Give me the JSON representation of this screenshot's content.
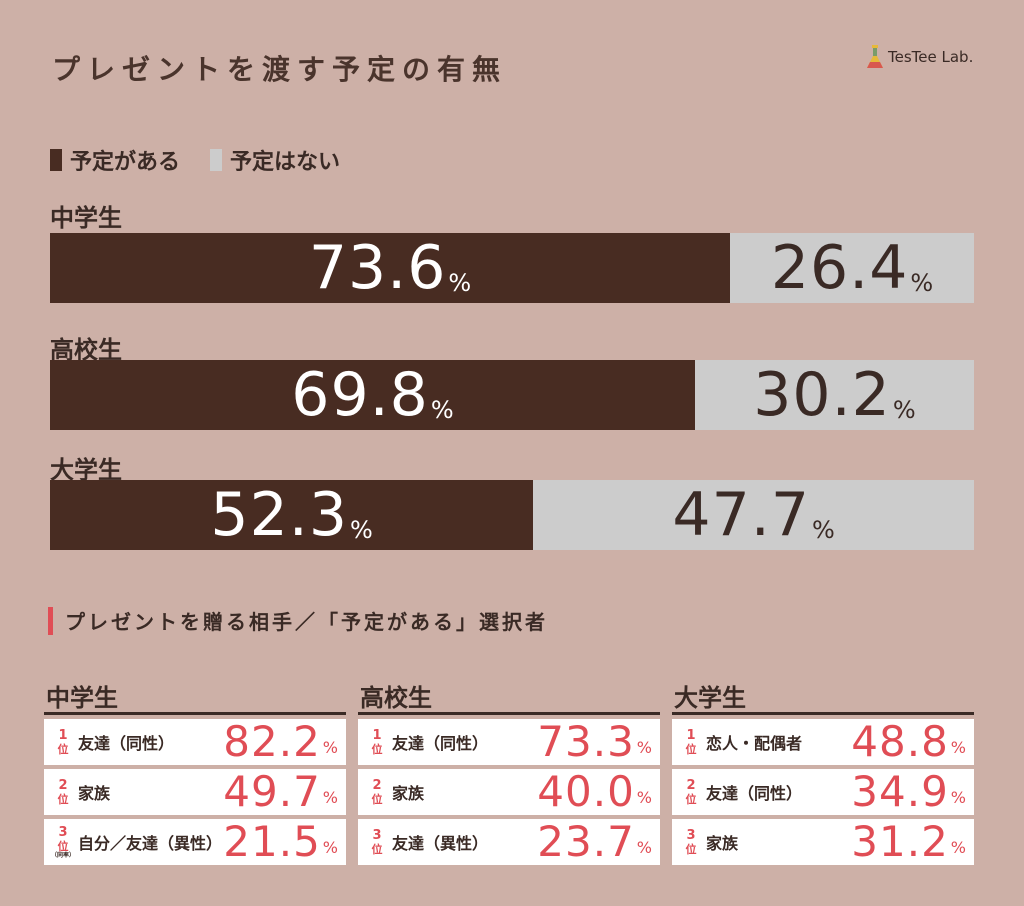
{
  "title": "プレゼントを渡す予定の有無",
  "logo": {
    "text": "TesTee Lab."
  },
  "colors": {
    "yes": "#482c22",
    "no": "#cccccc",
    "accent": "#e04d55",
    "background": "#cdb0a7"
  },
  "chart_data": [
    {
      "type": "bar",
      "stacked": true,
      "orientation": "horizontal",
      "title": "プレゼントを渡す予定の有無",
      "unit": "%",
      "categories": [
        "中学生",
        "高校生",
        "大学生"
      ],
      "series": [
        {
          "name": "予定がある",
          "values": [
            73.6,
            69.8,
            52.3
          ]
        },
        {
          "name": "予定はない",
          "values": [
            26.4,
            30.2,
            47.7
          ]
        }
      ],
      "legend": "top-left"
    },
    {
      "type": "table",
      "title": "プレゼントを贈る相手／「予定がある」選択者",
      "unit": "%",
      "groups": [
        {
          "name": "中学生",
          "rows": [
            {
              "rank": "1",
              "label": "友達（同性）",
              "value": "82.2",
              "note": ""
            },
            {
              "rank": "2",
              "label": "家族",
              "value": "49.7",
              "note": ""
            },
            {
              "rank": "3",
              "label": "自分／友達（異性）",
              "value": "21.5",
              "note": "（同率）"
            }
          ]
        },
        {
          "name": "高校生",
          "rows": [
            {
              "rank": "1",
              "label": "友達（同性）",
              "value": "73.3",
              "note": ""
            },
            {
              "rank": "2",
              "label": "家族",
              "value": "40.0",
              "note": ""
            },
            {
              "rank": "3",
              "label": "友達（異性）",
              "value": "23.7",
              "note": ""
            }
          ]
        },
        {
          "name": "大学生",
          "rows": [
            {
              "rank": "1",
              "label": "恋人・配偶者",
              "value": "48.8",
              "note": ""
            },
            {
              "rank": "2",
              "label": "友達（同性）",
              "value": "34.9",
              "note": ""
            },
            {
              "rank": "3",
              "label": "家族",
              "value": "31.2",
              "note": ""
            }
          ]
        }
      ]
    }
  ],
  "rank_suffix": "位",
  "percent_sign": "%"
}
